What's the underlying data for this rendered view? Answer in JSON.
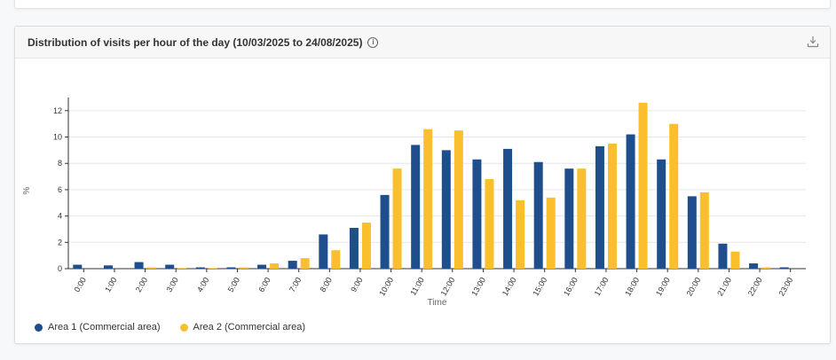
{
  "card": {
    "title": "Distribution of visits per hour of the day (10/03/2025 to 24/08/2025)"
  },
  "icons": {
    "info": "info-icon",
    "download": "download-icon"
  },
  "colors": {
    "series1": "#1f4e8c",
    "series2": "#fbbf2e",
    "grid": "#e6e6e6",
    "axis": "#333333"
  },
  "legend": {
    "area1": "Area 1 (Commercial area)",
    "area2": "Area 2 (Commercial area)"
  },
  "chart_data": {
    "type": "bar",
    "xlabel": "Time",
    "ylabel": "%",
    "ylim": [
      0,
      13
    ],
    "yticks": [
      0,
      2,
      4,
      6,
      8,
      10,
      12
    ],
    "grid": true,
    "legend_position": "bottom-left",
    "categories": [
      "0:00",
      "1:00",
      "2:00",
      "3:00",
      "4:00",
      "5:00",
      "6:00",
      "7:00",
      "8:00",
      "9:00",
      "10:00",
      "11:00",
      "12:00",
      "13:00",
      "14:00",
      "15:00",
      "16:00",
      "17:00",
      "18:00",
      "19:00",
      "20:00",
      "21:00",
      "22:00",
      "23:00"
    ],
    "series": [
      {
        "name": "Area 1 (Commercial area)",
        "values": [
          0.3,
          0.25,
          0.5,
          0.3,
          0.1,
          0.1,
          0.3,
          0.6,
          2.6,
          3.1,
          5.6,
          9.4,
          9.0,
          8.3,
          9.1,
          8.1,
          7.6,
          9.3,
          10.2,
          8.3,
          5.5,
          1.9,
          0.4,
          0.1
        ]
      },
      {
        "name": "Area 2 (Commercial area)",
        "values": [
          0.0,
          0.0,
          0.1,
          0.05,
          0.05,
          0.1,
          0.4,
          0.8,
          1.4,
          3.5,
          7.6,
          10.6,
          10.5,
          6.8,
          5.2,
          5.4,
          7.6,
          9.5,
          12.6,
          11.0,
          5.8,
          1.3,
          0.1,
          0.0
        ]
      }
    ]
  }
}
